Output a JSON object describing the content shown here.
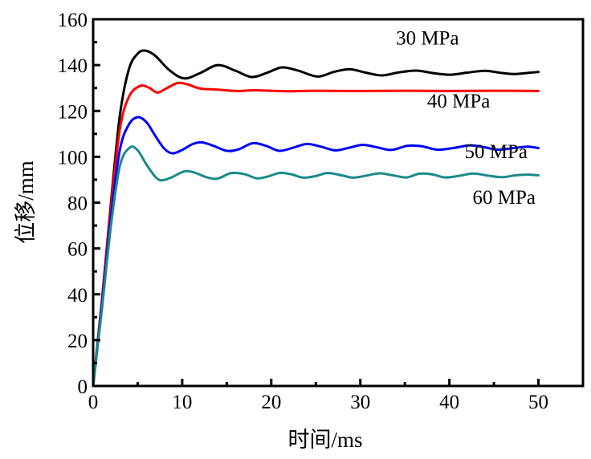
{
  "chart_data": {
    "type": "line",
    "title": "",
    "xlabel": "时间/ms",
    "ylabel": "位移/mm",
    "xlim": [
      0,
      55
    ],
    "ylim": [
      0,
      160
    ],
    "xticks": [
      0,
      10,
      20,
      30,
      40,
      50
    ],
    "xminor": [
      5,
      15,
      25,
      35,
      45
    ],
    "yticks": [
      0,
      20,
      40,
      60,
      80,
      100,
      120,
      140,
      160
    ],
    "yminor": [
      10,
      30,
      50,
      70,
      90,
      110,
      130,
      150
    ],
    "grid": false,
    "legend": "inline-labels-right",
    "series": [
      {
        "name": "30 MPa",
        "color": "#000000",
        "label_pos": [
          34,
          149
        ],
        "points": [
          [
            0,
            0
          ],
          [
            1,
            38
          ],
          [
            2,
            80
          ],
          [
            3,
            118
          ],
          [
            4,
            138
          ],
          [
            5,
            145
          ],
          [
            5.9,
            146.3
          ],
          [
            7,
            144
          ],
          [
            8.5,
            138
          ],
          [
            10.2,
            134.2
          ],
          [
            12,
            136.5
          ],
          [
            14,
            140
          ],
          [
            16,
            137.5
          ],
          [
            17.8,
            134.8
          ],
          [
            19.5,
            136.6
          ],
          [
            21.2,
            139
          ],
          [
            23,
            137.6
          ],
          [
            25.2,
            135
          ],
          [
            27,
            137
          ],
          [
            28.8,
            138.2
          ],
          [
            30.5,
            136.8
          ],
          [
            32.4,
            135.5
          ],
          [
            34.3,
            136.8
          ],
          [
            36.3,
            137.6
          ],
          [
            38.2,
            136.5
          ],
          [
            40.1,
            135.8
          ],
          [
            42,
            136.7
          ],
          [
            44,
            137.5
          ],
          [
            45.8,
            136.6
          ],
          [
            47.3,
            136.1
          ],
          [
            48.8,
            136.6
          ],
          [
            50,
            137
          ]
        ]
      },
      {
        "name": "40 MPa",
        "color": "#ff0000",
        "label_pos": [
          37.5,
          121.5
        ],
        "points": [
          [
            0,
            0
          ],
          [
            1,
            38
          ],
          [
            2,
            78
          ],
          [
            3,
            112
          ],
          [
            4,
            126
          ],
          [
            5.2,
            130.8
          ],
          [
            6.2,
            130.3
          ],
          [
            7.2,
            128
          ],
          [
            8.2,
            129.8
          ],
          [
            9.5,
            132.2
          ],
          [
            10.6,
            131.6
          ],
          [
            12,
            129.8
          ],
          [
            14,
            129.3
          ],
          [
            16,
            128.7
          ],
          [
            18,
            129
          ],
          [
            20,
            128.8
          ],
          [
            22,
            128.6
          ],
          [
            25,
            128.8
          ],
          [
            30,
            128.7
          ],
          [
            35,
            128.8
          ],
          [
            40,
            128.7
          ],
          [
            45,
            128.8
          ],
          [
            50,
            128.7
          ]
        ]
      },
      {
        "name": "50 MPa",
        "color": "#0000ff",
        "label_pos": [
          41.7,
          99.5
        ],
        "points": [
          [
            0,
            0
          ],
          [
            1,
            36
          ],
          [
            2,
            74
          ],
          [
            3,
            103
          ],
          [
            4,
            114
          ],
          [
            5,
            117.3
          ],
          [
            6,
            115
          ],
          [
            7,
            109
          ],
          [
            8,
            103.5
          ],
          [
            8.9,
            101.5
          ],
          [
            10,
            103
          ],
          [
            11.2,
            105.6
          ],
          [
            12.2,
            106.3
          ],
          [
            13.5,
            104.8
          ],
          [
            15,
            102.6
          ],
          [
            16.3,
            103.2
          ],
          [
            17.9,
            105.9
          ],
          [
            19.4,
            104.8
          ],
          [
            20.9,
            102.6
          ],
          [
            22.5,
            104
          ],
          [
            24,
            105.6
          ],
          [
            25.6,
            104.4
          ],
          [
            27.2,
            102.8
          ],
          [
            28.8,
            104
          ],
          [
            30.3,
            105.2
          ],
          [
            31.9,
            104.1
          ],
          [
            33.5,
            103
          ],
          [
            35.3,
            104.8
          ],
          [
            36.9,
            104.6
          ],
          [
            38.6,
            103.1
          ],
          [
            40.4,
            103.8
          ],
          [
            42.3,
            105
          ],
          [
            43.9,
            104.2
          ],
          [
            45.4,
            103.1
          ],
          [
            47.2,
            103.8
          ],
          [
            48.8,
            104.4
          ],
          [
            50,
            103.8
          ]
        ]
      },
      {
        "name": "60 MPa",
        "color": "#1a8a8a",
        "label_pos": [
          42.6,
          79.5
        ],
        "points": [
          [
            0,
            0
          ],
          [
            1,
            34
          ],
          [
            2,
            70
          ],
          [
            3,
            96
          ],
          [
            4.1,
            104
          ],
          [
            5,
            102.8
          ],
          [
            6,
            96.5
          ],
          [
            7,
            91.2
          ],
          [
            7.7,
            89.7
          ],
          [
            8.8,
            91
          ],
          [
            10.2,
            93.6
          ],
          [
            11.3,
            93.2
          ],
          [
            12.8,
            91
          ],
          [
            14,
            90.5
          ],
          [
            15.5,
            92.9
          ],
          [
            17,
            92.4
          ],
          [
            18.4,
            90.6
          ],
          [
            19.7,
            91.5
          ],
          [
            21,
            93
          ],
          [
            22.3,
            92.3
          ],
          [
            23.6,
            90.9
          ],
          [
            25,
            91.6
          ],
          [
            26.3,
            92.9
          ],
          [
            27.8,
            92
          ],
          [
            29.2,
            90.9
          ],
          [
            30.7,
            91.8
          ],
          [
            32.2,
            92.8
          ],
          [
            33.8,
            91.8
          ],
          [
            35.2,
            91
          ],
          [
            36.6,
            92.6
          ],
          [
            38,
            92.4
          ],
          [
            39.5,
            91
          ],
          [
            41.1,
            91.7
          ],
          [
            42.7,
            92.7
          ],
          [
            44.3,
            91.8
          ],
          [
            45.9,
            91.1
          ],
          [
            47.4,
            91.9
          ],
          [
            48.8,
            92.2
          ],
          [
            50,
            91.9
          ]
        ]
      }
    ]
  }
}
